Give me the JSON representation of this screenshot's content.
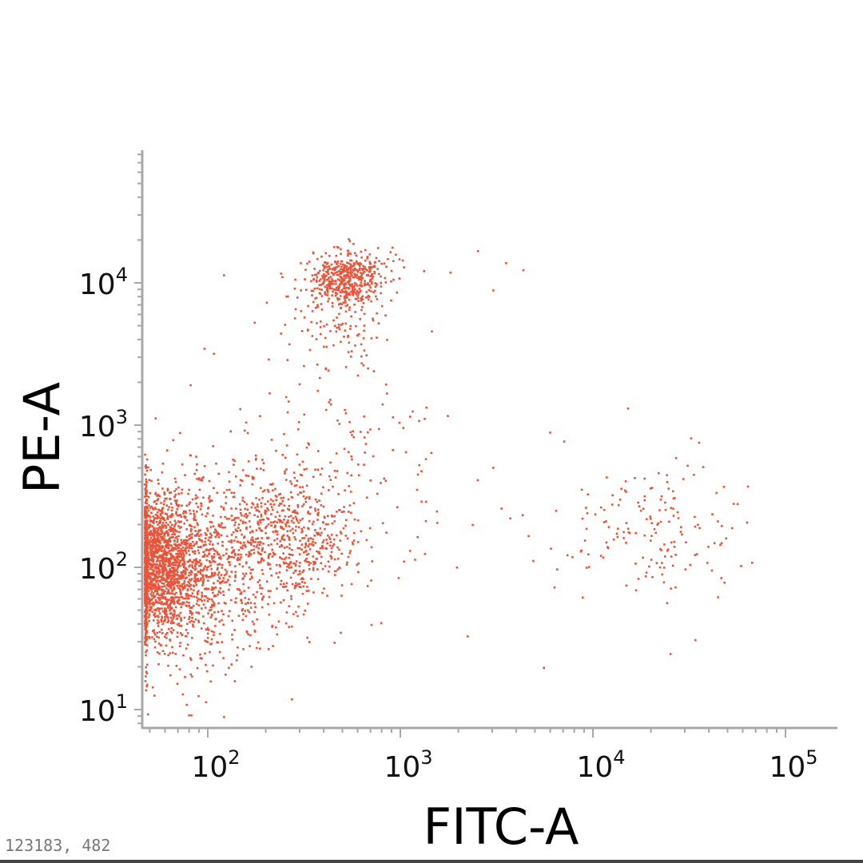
{
  "chart_data": {
    "type": "scatter",
    "title": "",
    "xlabel": "FITC-A",
    "ylabel": "PE-A",
    "x_scale": "log",
    "y_scale": "log",
    "xlim": [
      48,
      130000
    ],
    "ylim": [
      7.5,
      70000
    ],
    "x_ticks": [
      {
        "value": 100,
        "base": "10",
        "exp": "2"
      },
      {
        "value": 1000,
        "base": "10",
        "exp": "3"
      },
      {
        "value": 10000,
        "base": "10",
        "exp": "4"
      },
      {
        "value": 100000,
        "base": "10",
        "exp": "5"
      }
    ],
    "y_ticks": [
      {
        "value": 10,
        "base": "10",
        "exp": "1"
      },
      {
        "value": 100,
        "base": "10",
        "exp": "2"
      },
      {
        "value": 1000,
        "base": "10",
        "exp": "3"
      },
      {
        "value": 10000,
        "base": "10",
        "exp": "4"
      }
    ],
    "grid": false,
    "legend": "none",
    "point_color": "#e8553a",
    "populations": [
      {
        "center": [
          55,
          110
        ],
        "spread": [
          0.1,
          0.22
        ],
        "count": 1400
      },
      {
        "center": [
          70,
          90
        ],
        "spread": [
          0.2,
          0.35
        ],
        "count": 900
      },
      {
        "center": [
          150,
          130
        ],
        "spread": [
          0.22,
          0.3
        ],
        "count": 400
      },
      {
        "center": [
          280,
          180
        ],
        "spread": [
          0.18,
          0.22
        ],
        "count": 450
      },
      {
        "center": [
          520,
          11000
        ],
        "spread": [
          0.1,
          0.09
        ],
        "count": 480
      },
      {
        "center": [
          450,
          6000
        ],
        "spread": [
          0.12,
          0.18
        ],
        "count": 120
      },
      {
        "center": [
          500,
          700
        ],
        "spread": [
          0.25,
          0.35
        ],
        "count": 130
      },
      {
        "center": [
          22000,
          180
        ],
        "spread": [
          0.22,
          0.22
        ],
        "count": 150
      },
      {
        "center": [
          3000,
          200
        ],
        "spread": [
          0.55,
          0.35
        ],
        "count": 40
      }
    ],
    "scattered_points": [
      [
        540,
        20000
      ],
      [
        900,
        18000
      ],
      [
        2500,
        17000
      ],
      [
        3500,
        14000
      ],
      [
        4300,
        12500
      ],
      [
        3000,
        9000
      ],
      [
        1800,
        12000
      ],
      [
        120,
        11500
      ],
      [
        95,
        3500
      ],
      [
        250,
        600
      ],
      [
        1350,
        1350
      ],
      [
        7000,
        780
      ],
      [
        32000,
        820
      ],
      [
        3000,
        510
      ],
      [
        700,
        40
      ],
      [
        450,
        30
      ],
      [
        270,
        12
      ],
      [
        120,
        9
      ],
      [
        5500,
        20
      ],
      [
        25000,
        25
      ]
    ]
  },
  "footer": {
    "event_text": "123183, 482"
  }
}
